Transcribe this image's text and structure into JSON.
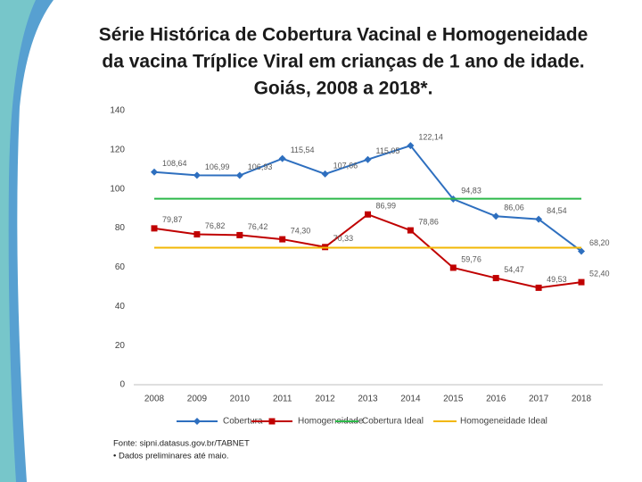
{
  "chart_data": {
    "type": "line",
    "title": [
      "Série Histórica de Cobertura Vacinal e Homogeneidade",
      "da vacina Tríplice Viral em crianças de 1 ano de idade.",
      "Goiás, 2008 a 2018*."
    ],
    "categories": [
      "2008",
      "2009",
      "2010",
      "2011",
      "2012",
      "2013",
      "2014",
      "2015",
      "2016",
      "2017",
      "2018"
    ],
    "series": [
      {
        "name": "Cobertura",
        "color": "#2e6fbf",
        "marker": "diamond",
        "values": [
          108.64,
          106.99,
          106.93,
          115.54,
          107.66,
          115.05,
          122.14,
          94.83,
          86.06,
          84.54,
          68.2
        ],
        "value_labels": [
          "108,64",
          "106,99",
          "106,93",
          "115,54",
          "107,66",
          "115,05",
          "122,14",
          "94,83",
          "86,06",
          "84,54",
          "68,20"
        ]
      },
      {
        "name": "Homogeneidade",
        "color": "#c00000",
        "marker": "square",
        "values": [
          79.87,
          76.82,
          76.42,
          74.3,
          70.33,
          86.99,
          78.86,
          59.76,
          54.47,
          49.53,
          52.4
        ],
        "value_labels": [
          "79,87",
          "76,82",
          "76,42",
          "74,30",
          "70,33",
          "86,99",
          "78,86",
          "59,76",
          "54,47",
          "49,53",
          "52,40"
        ]
      },
      {
        "name": "Cobertura Ideal",
        "color": "#2db84a",
        "marker": "none",
        "values": [
          95,
          95,
          95,
          95,
          95,
          95,
          95,
          95,
          95,
          95,
          95
        ]
      },
      {
        "name": "Homogeneidade Ideal",
        "color": "#f2b705",
        "marker": "none",
        "values": [
          70,
          70,
          70,
          70,
          70,
          70,
          70,
          70,
          70,
          70,
          70
        ]
      }
    ],
    "ylim": [
      0,
      140
    ],
    "yticks": [
      0,
      20,
      40,
      60,
      80,
      100,
      120,
      140
    ],
    "grid": false,
    "legend": "bottom",
    "footnotes": [
      "Fonte: sipni.datasus.gov.br/TABNET",
      "• Dados preliminares até maio."
    ]
  }
}
